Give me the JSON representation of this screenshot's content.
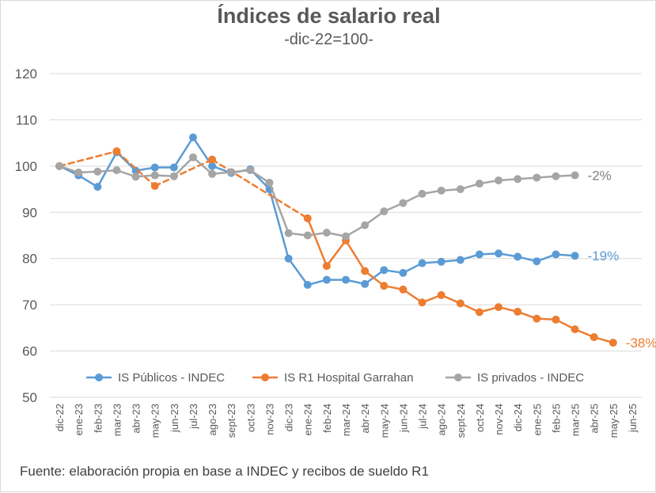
{
  "chart_data": {
    "type": "line",
    "title": "Índices de salario real",
    "subtitle": "-dic-22=100-",
    "source": "Fuente: elaboración propia en base a INDEC y recibos de sueldo R1",
    "ylim": [
      50,
      120
    ],
    "yticks": [
      50,
      60,
      70,
      80,
      90,
      100,
      110,
      120
    ],
    "grid": true,
    "legend_position": "bottom",
    "categories": [
      "dic-22",
      "ene-23",
      "feb-23",
      "mar-23",
      "abr-23",
      "may-23",
      "jun-23",
      "jul-23",
      "ago-23",
      "sept-23",
      "oct-23",
      "nov-23",
      "dic-23",
      "ene-24",
      "feb-24",
      "mar-24",
      "abr-24",
      "may-24",
      "jun-24",
      "jul-24",
      "ago-24",
      "sept-24",
      "oct-24",
      "nov-24",
      "dic-24",
      "ene-25",
      "feb-25",
      "mar-25",
      "abr-25",
      "may-25",
      "jun-25"
    ],
    "series": [
      {
        "name": "IS Públicos - INDEC",
        "color": "#5b9bd5",
        "values": [
          100,
          98,
          95.5,
          103,
          99,
          99.7,
          99.7,
          106.2,
          100,
          98.5,
          99.3,
          95,
          80,
          74.3,
          75.4,
          75.4,
          74.5,
          77.5,
          76.9,
          79,
          79.3,
          79.7,
          80.9,
          81.1,
          80.4,
          79.4,
          80.9,
          80.6,
          null,
          null,
          null
        ],
        "end_label": "-19%"
      },
      {
        "name": "IS R1 Hospital Garrahan",
        "color": "#ed7d31",
        "values": [
          100,
          null,
          null,
          103.2,
          null,
          95.7,
          null,
          null,
          101.4,
          null,
          null,
          null,
          null,
          88.7,
          78.4,
          83.9,
          77.3,
          74.1,
          73.3,
          70.5,
          72.1,
          70.3,
          68.4,
          69.5,
          68.5,
          67,
          66.8,
          64.7,
          63,
          61.8,
          null
        ],
        "dashed_until_index": 13,
        "end_label": "-38%"
      },
      {
        "name": "IS privados - INDEC",
        "color": "#a5a5a5",
        "values": [
          100,
          98.6,
          98.8,
          99.1,
          97.7,
          98,
          97.8,
          101.9,
          98.3,
          98.7,
          99.1,
          96.4,
          85.5,
          85,
          85.6,
          84.8,
          87.2,
          90.2,
          92,
          94,
          94.7,
          95,
          96.2,
          96.9,
          97.2,
          97.5,
          97.8,
          98,
          null,
          null,
          null
        ],
        "end_label": "-2%"
      }
    ]
  }
}
